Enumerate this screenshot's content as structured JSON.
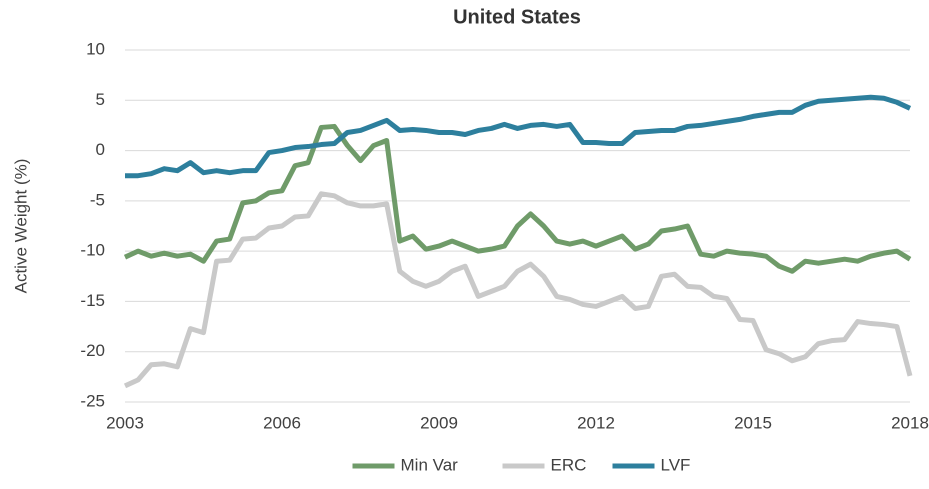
{
  "chart_data": {
    "type": "line",
    "title": "United States",
    "y_label": "Active Weight (%)",
    "x": [
      2003,
      2003.25,
      2003.5,
      2003.75,
      2004,
      2004.25,
      2004.5,
      2004.75,
      2005,
      2005.25,
      2005.5,
      2005.75,
      2006,
      2006.25,
      2006.5,
      2006.75,
      2007,
      2007.25,
      2007.5,
      2007.75,
      2008,
      2008.25,
      2008.5,
      2008.75,
      2009,
      2009.25,
      2009.5,
      2009.75,
      2010,
      2010.25,
      2010.5,
      2010.75,
      2011,
      2011.25,
      2011.5,
      2011.75,
      2012,
      2012.25,
      2012.5,
      2012.75,
      2013,
      2013.25,
      2013.5,
      2013.75,
      2014,
      2014.25,
      2014.5,
      2014.75,
      2015,
      2015.25,
      2015.5,
      2015.75,
      2016,
      2016.25,
      2016.5,
      2016.75,
      2017,
      2017.25,
      2017.5,
      2017.75,
      2018
    ],
    "series": [
      {
        "name": "Min Var",
        "color": "#6f9b69",
        "values": [
          -10.6,
          -10,
          -10.5,
          -10.2,
          -10.5,
          -10.3,
          -11,
          -9,
          -8.8,
          -5.2,
          -5,
          -4.2,
          -4,
          -1.5,
          -1.2,
          2.3,
          2.4,
          0.5,
          -1,
          0.5,
          1,
          -9,
          -8.5,
          -9.8,
          -9.5,
          -9,
          -9.5,
          -10,
          -9.8,
          -9.5,
          -7.5,
          -6.3,
          -7.5,
          -9,
          -9.3,
          -9,
          -9.5,
          -9,
          -8.5,
          -9.8,
          -9.3,
          -8,
          -7.8,
          -7.5,
          -10.3,
          -10.5,
          -10,
          -10.2,
          -10.3,
          -10.5,
          -11.5,
          -12,
          -11,
          -11.2,
          -11,
          -10.8,
          -11,
          -10.5,
          -10.2,
          -10,
          -10.8
        ]
      },
      {
        "name": "ERC",
        "color": "#c9c9c9",
        "values": [
          -23.4,
          -22.8,
          -21.3,
          -21.2,
          -21.5,
          -17.7,
          -18.1,
          -11,
          -10.9,
          -8.8,
          -8.7,
          -7.7,
          -7.5,
          -6.6,
          -6.5,
          -4.3,
          -4.5,
          -5.2,
          -5.5,
          -5.5,
          -5.3,
          -12,
          -13,
          -13.5,
          -13,
          -12,
          -11.5,
          -14.5,
          -14,
          -13.5,
          -12,
          -11.3,
          -12.5,
          -14.5,
          -14.8,
          -15.3,
          -15.5,
          -15,
          -14.5,
          -15.7,
          -15.5,
          -12.5,
          -12.3,
          -13.5,
          -13.6,
          -14.5,
          -14.7,
          -16.8,
          -16.9,
          -19.8,
          -20.2,
          -20.9,
          -20.5,
          -19.2,
          -18.9,
          -18.8,
          -17,
          -17.2,
          -17.3,
          -17.5,
          -22.4
        ]
      },
      {
        "name": "LVF",
        "color": "#2d7f9d",
        "values": [
          -2.5,
          -2.5,
          -2.3,
          -1.8,
          -2,
          -1.2,
          -2.2,
          -2,
          -2.2,
          -2,
          -2,
          -0.2,
          0,
          0.3,
          0.4,
          0.6,
          0.7,
          1.8,
          2,
          2.5,
          3,
          2,
          2.1,
          2,
          1.8,
          1.8,
          1.6,
          2,
          2.2,
          2.6,
          2.2,
          2.5,
          2.6,
          2.4,
          2.6,
          0.8,
          0.8,
          0.7,
          0.7,
          1.8,
          1.9,
          2,
          2,
          2.4,
          2.5,
          2.7,
          2.9,
          3.1,
          3.4,
          3.6,
          3.8,
          3.8,
          4.5,
          4.9,
          5,
          5.1,
          5.2,
          5.3,
          5.2,
          4.8,
          4.2
        ]
      }
    ],
    "xlim": [
      2003,
      2018
    ],
    "xticks": [
      2003,
      2006,
      2009,
      2012,
      2015,
      2018
    ],
    "ylim": [
      -25,
      10
    ],
    "yticks": [
      -25,
      -20,
      -15,
      -10,
      -5,
      0,
      5,
      10
    ],
    "grid": true,
    "legend": "bottom"
  }
}
